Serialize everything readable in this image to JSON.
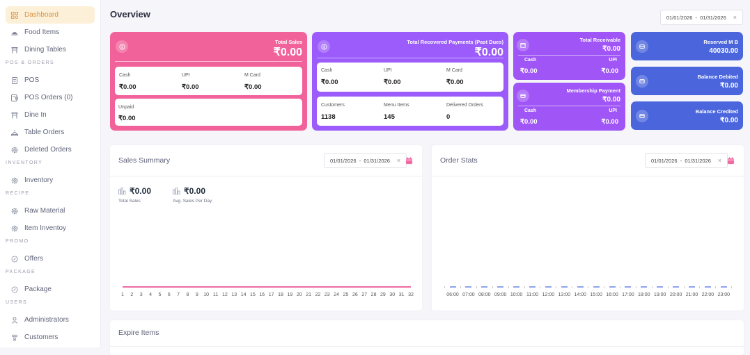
{
  "sidebar": {
    "items": [
      {
        "label": "Dashboard",
        "icon": "dashboard-icon",
        "active": true
      },
      {
        "label": "Food Items",
        "icon": "food-icon"
      },
      {
        "label": "Dining Tables",
        "icon": "table-icon"
      },
      {
        "section": "POS & ORDERS"
      },
      {
        "label": "POS",
        "icon": "receipt-icon"
      },
      {
        "label": "POS Orders (0)",
        "icon": "orders-icon"
      },
      {
        "label": "Dine In",
        "icon": "table-icon"
      },
      {
        "label": "Table Orders",
        "icon": "cloche-icon"
      },
      {
        "label": "Deleted Orders",
        "icon": "gear-icon"
      },
      {
        "section": "INVENTORY"
      },
      {
        "label": "Inventory",
        "icon": "gear-icon"
      },
      {
        "section": "RECIPE"
      },
      {
        "label": "Raw Material",
        "icon": "gear-icon"
      },
      {
        "label": "Item Inventoy",
        "icon": "gear-icon"
      },
      {
        "section": "PROMO"
      },
      {
        "label": "Offers",
        "icon": "discount-icon"
      },
      {
        "section": "PACKAGE"
      },
      {
        "label": "Package",
        "icon": "discount-icon"
      },
      {
        "section": "USERS"
      },
      {
        "label": "Administrators",
        "icon": "user-icon"
      },
      {
        "label": "Customers",
        "icon": "users-icon"
      }
    ]
  },
  "header": {
    "title": "Overview",
    "date_range": "01/01/2026  -  01/31/2026",
    "clear": "×"
  },
  "cards": {
    "total_sales": {
      "title": "Total Sales",
      "value": "₹0.00",
      "cash_label": "Cash",
      "cash": "₹0.00",
      "upi_label": "UPI",
      "upi": "₹0.00",
      "mcard_label": "M Card",
      "mcard": "₹0.00",
      "unpaid_label": "Unpaid",
      "unpaid": "₹0.00",
      "color": "#f2629a"
    },
    "recovered": {
      "title": "Total Recovered Payments (Past Dues)",
      "value": "₹0.00",
      "cash_label": "Cash",
      "cash": "₹0.00",
      "upi_label": "UPI",
      "upi": "₹0.00",
      "mcard_label": "M Card",
      "mcard": "₹0.00",
      "customers_label": "Customers",
      "customers": "1138",
      "menu_label": "Menu Items",
      "menu": "145",
      "delivered_label": "Delivered Orders",
      "delivered": "0",
      "color": "#9b5cfb"
    },
    "receivable": {
      "title": "Total Receivable",
      "value": "₹0.00",
      "cash_label": "Cash",
      "cash": "₹0.00",
      "upi_label": "UPI",
      "upi": "₹0.00"
    },
    "membership": {
      "title": "Membership Payment",
      "value": "₹0.00",
      "cash_label": "Cash",
      "cash": "₹0.00",
      "upi_label": "UPI",
      "upi": "₹0.00"
    },
    "reserved": {
      "title": "Reserved M B",
      "value": "40030.00"
    },
    "debited": {
      "title": "Balance Debited",
      "value": "₹0.00"
    },
    "credited": {
      "title": "Balance Credited",
      "value": "₹0.00"
    }
  },
  "sales_summary": {
    "title": "Sales Summary",
    "date_range": "01/01/2026  -  01/31/2026",
    "clear": "×",
    "total_sales": "₹0.00",
    "total_sales_label": "Total Sales",
    "avg_sales": "₹0.00",
    "avg_sales_label": "Avg. Sales Per Day"
  },
  "order_stats": {
    "title": "Order Stats",
    "date_range": "01/01/2026  -  01/31/2026",
    "clear": "×"
  },
  "expire_items": {
    "title": "Expire Items"
  },
  "chart_data": [
    {
      "type": "line",
      "title": "Sales Summary",
      "x": [
        "1",
        "2",
        "3",
        "4",
        "5",
        "6",
        "7",
        "8",
        "9",
        "10",
        "11",
        "12",
        "13",
        "14",
        "15",
        "16",
        "17",
        "18",
        "19",
        "20",
        "21",
        "22",
        "23",
        "24",
        "25",
        "26",
        "27",
        "28",
        "29",
        "30",
        "31",
        "32"
      ],
      "values": [
        0,
        0,
        0,
        0,
        0,
        0,
        0,
        0,
        0,
        0,
        0,
        0,
        0,
        0,
        0,
        0,
        0,
        0,
        0,
        0,
        0,
        0,
        0,
        0,
        0,
        0,
        0,
        0,
        0,
        0,
        0,
        0
      ],
      "color": "#f06aa2"
    },
    {
      "type": "bar",
      "title": "Order Stats",
      "categories": [
        "06:00",
        "07:00",
        "08:00",
        "09:00",
        "10:00",
        "11:00",
        "12:00",
        "13:00",
        "14:00",
        "15:00",
        "16:00",
        "17:00",
        "18:00",
        "19:00",
        "20:00",
        "21:00",
        "22:00",
        "23:00"
      ],
      "values": [
        0,
        0,
        0,
        0,
        0,
        0,
        0,
        0,
        0,
        0,
        0,
        0,
        0,
        0,
        0,
        0,
        0,
        0
      ],
      "color": "#8ea3f5"
    }
  ]
}
